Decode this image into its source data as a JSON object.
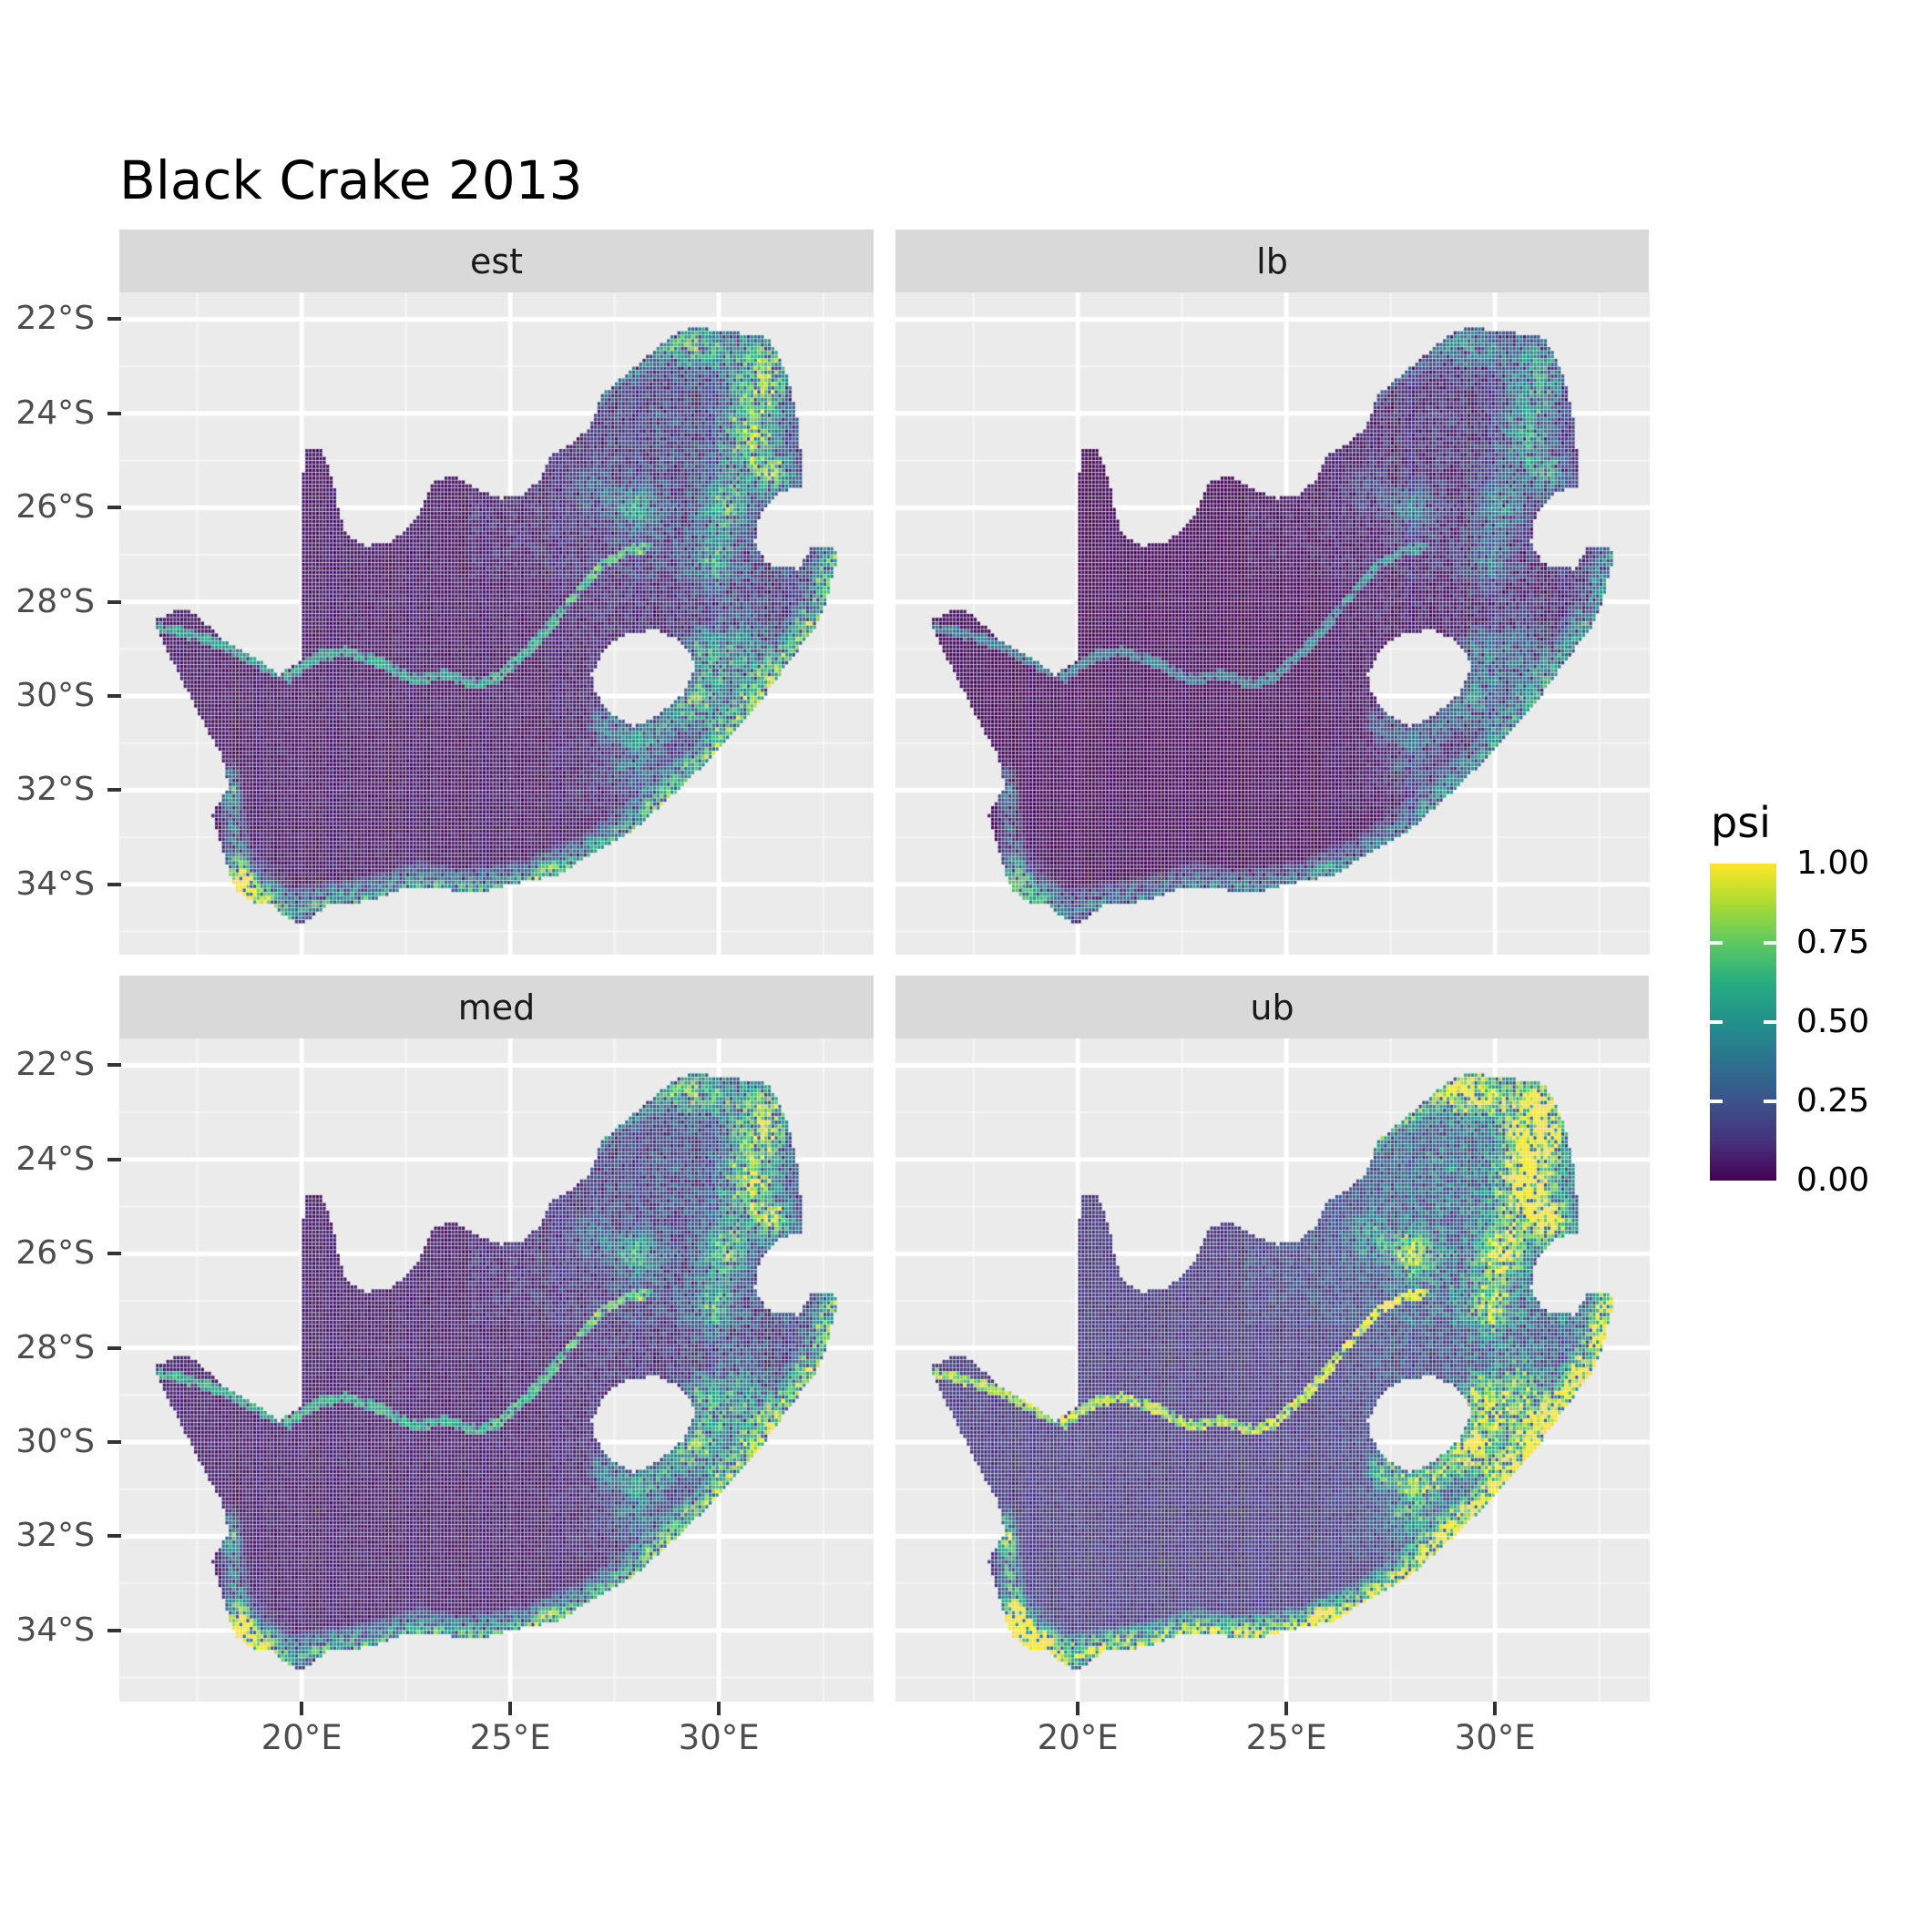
{
  "title": "Black Crake 2013",
  "facets": [
    {
      "key": "est",
      "label": "est"
    },
    {
      "key": "lb",
      "label": "lb"
    },
    {
      "key": "med",
      "label": "med"
    },
    {
      "key": "ub",
      "label": "ub"
    }
  ],
  "axes": {
    "x": {
      "ticks": [
        {
          "label": "20°E",
          "lon": 20
        },
        {
          "label": "25°E",
          "lon": 25
        },
        {
          "label": "30°E",
          "lon": 30
        }
      ]
    },
    "y": {
      "ticks": [
        {
          "label": "22°S",
          "lat": -22
        },
        {
          "label": "24°S",
          "lat": -24
        },
        {
          "label": "26°S",
          "lat": -26
        },
        {
          "label": "28°S",
          "lat": -28
        },
        {
          "label": "30°S",
          "lat": -30
        },
        {
          "label": "32°S",
          "lat": -32
        },
        {
          "label": "34°S",
          "lat": -34
        }
      ]
    }
  },
  "legend": {
    "title": "psi",
    "entries": [
      {
        "label": "1.00",
        "value": 1.0
      },
      {
        "label": "0.75",
        "value": 0.75
      },
      {
        "label": "0.50",
        "value": 0.5
      },
      {
        "label": "0.25",
        "value": 0.25
      },
      {
        "label": "0.00",
        "value": 0.0
      }
    ]
  },
  "style": {
    "panel_bg": "#EBEBEB",
    "strip_bg": "#D9D9D9",
    "grid_major": "#FFFFFF",
    "grid_minor": "rgba(255,255,255,0.55)",
    "axis_text": "#4D4D4D",
    "tick_color": "#333333",
    "title_color": "#000000",
    "viridis": [
      "#440154",
      "#46327E",
      "#3B528B",
      "#2C728E",
      "#21918C",
      "#27AD81",
      "#5EC962",
      "#AADC32",
      "#FDE725"
    ]
  },
  "chart_data": {
    "type": "heatmap",
    "subtype": "faceted-raster-occupancy-map",
    "region": "South Africa",
    "variable": "psi",
    "value_range": [
      0,
      1
    ],
    "facet_order": [
      "est",
      "lb",
      "med",
      "ub"
    ],
    "facet_transforms": {
      "est": {
        "mul": 1.0,
        "add": 0.0
      },
      "lb": {
        "mul": 0.74,
        "add": -0.02
      },
      "med": {
        "mul": 1.06,
        "add": 0.015
      },
      "ub": {
        "mul": 1.45,
        "add": 0.07
      }
    },
    "extent": {
      "lon_min": 15.63,
      "lon_max": 33.71,
      "lat_top": -21.43,
      "lat_bottom": -35.5
    },
    "cell_deg": 0.083333,
    "x_breaks": [
      20,
      25,
      30
    ],
    "x_minor_breaks": [
      17.5,
      22.5,
      27.5,
      32.5
    ],
    "y_breaks": [
      -22,
      -24,
      -26,
      -28,
      -30,
      -32,
      -34
    ],
    "y_minor_breaks": [
      -23,
      -25,
      -27,
      -29,
      -31,
      -33,
      -35
    ],
    "legend_position": "right",
    "outline": [
      [
        16.45,
        -28.4
      ],
      [
        16.95,
        -28.2
      ],
      [
        17.35,
        -28.2
      ],
      [
        17.75,
        -28.5
      ],
      [
        18.25,
        -28.9
      ],
      [
        18.85,
        -29.15
      ],
      [
        19.45,
        -29.55
      ],
      [
        19.98,
        -29.25
      ],
      [
        19.99,
        -28.0
      ],
      [
        20.0,
        -26.5
      ],
      [
        20.02,
        -25.4
      ],
      [
        20.1,
        -24.78
      ],
      [
        20.45,
        -24.75
      ],
      [
        20.65,
        -25.1
      ],
      [
        20.8,
        -25.6
      ],
      [
        20.9,
        -26.1
      ],
      [
        21.05,
        -26.55
      ],
      [
        21.55,
        -26.8
      ],
      [
        22.15,
        -26.75
      ],
      [
        22.6,
        -26.35
      ],
      [
        22.9,
        -26.0
      ],
      [
        23.15,
        -25.45
      ],
      [
        23.65,
        -25.3
      ],
      [
        24.15,
        -25.6
      ],
      [
        24.75,
        -25.8
      ],
      [
        25.35,
        -25.7
      ],
      [
        25.7,
        -25.4
      ],
      [
        25.95,
        -24.9
      ],
      [
        26.45,
        -24.65
      ],
      [
        26.9,
        -24.3
      ],
      [
        27.2,
        -23.6
      ],
      [
        27.75,
        -23.2
      ],
      [
        28.25,
        -22.8
      ],
      [
        28.95,
        -22.3
      ],
      [
        29.45,
        -22.15
      ],
      [
        29.95,
        -22.25
      ],
      [
        30.6,
        -22.3
      ],
      [
        31.2,
        -22.4
      ],
      [
        31.6,
        -23.1
      ],
      [
        31.85,
        -23.9
      ],
      [
        31.95,
        -24.6
      ],
      [
        32.0,
        -25.55
      ],
      [
        31.4,
        -25.7
      ],
      [
        31.0,
        -26.1
      ],
      [
        30.85,
        -26.75
      ],
      [
        31.15,
        -27.2
      ],
      [
        31.9,
        -27.3
      ],
      [
        32.2,
        -26.85
      ],
      [
        32.88,
        -26.88
      ],
      [
        32.6,
        -27.95
      ],
      [
        32.3,
        -28.55
      ],
      [
        31.7,
        -29.25
      ],
      [
        30.85,
        -30.3
      ],
      [
        29.95,
        -31.2
      ],
      [
        28.95,
        -32.05
      ],
      [
        27.95,
        -32.85
      ],
      [
        27.05,
        -33.3
      ],
      [
        26.15,
        -33.8
      ],
      [
        25.65,
        -33.9
      ],
      [
        25.0,
        -34.0
      ],
      [
        24.2,
        -34.2
      ],
      [
        23.4,
        -34.1
      ],
      [
        22.55,
        -34.05
      ],
      [
        21.7,
        -34.35
      ],
      [
        20.6,
        -34.45
      ],
      [
        20.0,
        -34.85
      ],
      [
        19.5,
        -34.65
      ],
      [
        19.3,
        -34.45
      ],
      [
        18.85,
        -34.4
      ],
      [
        18.45,
        -34.15
      ],
      [
        18.3,
        -33.85
      ],
      [
        18.05,
        -33.15
      ],
      [
        17.85,
        -32.55
      ],
      [
        18.25,
        -31.9
      ],
      [
        18.1,
        -31.3
      ],
      [
        17.6,
        -30.5
      ],
      [
        17.1,
        -29.6
      ],
      [
        16.75,
        -29.0
      ]
    ],
    "hole_lesotho": [
      [
        26.95,
        -29.55
      ],
      [
        27.3,
        -28.95
      ],
      [
        27.9,
        -28.65
      ],
      [
        28.55,
        -28.6
      ],
      [
        29.1,
        -28.85
      ],
      [
        29.45,
        -29.35
      ],
      [
        29.15,
        -29.95
      ],
      [
        28.55,
        -30.4
      ],
      [
        27.95,
        -30.65
      ],
      [
        27.45,
        -30.4
      ],
      [
        27.05,
        -29.95
      ]
    ],
    "base": {
      "floor": 0.025,
      "noise": 0.055,
      "dropout_p": 0.13,
      "dropout_mul": 0.3
    },
    "features": {
      "blobs": [
        {
          "lon": 31.0,
          "lat": -23.3,
          "sx": 0.75,
          "sy": 0.9,
          "amp": 0.75
        },
        {
          "lon": 30.7,
          "lat": -24.6,
          "sx": 0.6,
          "sy": 0.7,
          "amp": 0.6
        },
        {
          "lon": 31.3,
          "lat": -25.3,
          "sx": 0.45,
          "sy": 0.5,
          "amp": 0.65
        },
        {
          "lon": 29.5,
          "lat": -22.6,
          "sx": 0.8,
          "sy": 0.45,
          "amp": 0.5
        },
        {
          "lon": 30.2,
          "lat": -25.9,
          "sx": 0.5,
          "sy": 0.6,
          "amp": 0.55
        },
        {
          "lon": 29.9,
          "lat": -27.1,
          "sx": 0.5,
          "sy": 0.6,
          "amp": 0.45
        },
        {
          "lon": 28.0,
          "lat": -26.0,
          "sx": 0.6,
          "sy": 0.5,
          "amp": 0.45
        },
        {
          "lon": 27.0,
          "lat": -25.6,
          "sx": 0.5,
          "sy": 0.4,
          "amp": 0.25
        },
        {
          "lon": 30.5,
          "lat": -29.2,
          "sx": 0.7,
          "sy": 0.8,
          "amp": 0.5
        },
        {
          "lon": 29.7,
          "lat": -30.3,
          "sx": 0.5,
          "sy": 0.5,
          "amp": 0.4
        },
        {
          "lon": 28.0,
          "lat": -31.5,
          "sx": 0.6,
          "sy": 0.5,
          "amp": 0.35
        },
        {
          "lon": 18.55,
          "lat": -33.9,
          "sx": 0.35,
          "sy": 0.45,
          "amp": 0.95
        },
        {
          "lon": 19.0,
          "lat": -34.2,
          "sx": 0.5,
          "sy": 0.35,
          "amp": 0.5
        },
        {
          "lon": 18.33,
          "lat": -32.05,
          "sx": 0.15,
          "sy": 0.2,
          "amp": 0.6
        }
      ],
      "bands": [
        {
          "name": "kzn-east-coast",
          "w": 0.6,
          "amp": 0.7,
          "path": [
            [
              32.88,
              -26.9
            ],
            [
              32.45,
              -28.2
            ],
            [
              31.7,
              -29.2
            ],
            [
              30.8,
              -30.3
            ],
            [
              29.9,
              -31.2
            ],
            [
              28.9,
              -32.1
            ],
            [
              27.9,
              -32.9
            ],
            [
              26.9,
              -33.5
            ],
            [
              26.0,
              -33.8
            ]
          ]
        },
        {
          "name": "south-coast",
          "w": 0.5,
          "amp": 0.65,
          "path": [
            [
              25.8,
              -33.9
            ],
            [
              24.8,
              -34.05
            ],
            [
              23.8,
              -34.15
            ],
            [
              22.8,
              -34.0
            ],
            [
              21.7,
              -34.3
            ],
            [
              20.6,
              -34.4
            ],
            [
              19.7,
              -34.6
            ],
            [
              18.9,
              -34.3
            ],
            [
              18.45,
              -34.1
            ]
          ]
        },
        {
          "name": "west-coast",
          "w": 0.35,
          "amp": 0.4,
          "path": [
            [
              18.2,
              -31.7
            ],
            [
              18.35,
              -32.4
            ],
            [
              18.4,
              -33.0
            ],
            [
              18.45,
              -33.6
            ]
          ]
        },
        {
          "name": "drakensberg-rim",
          "w": 0.45,
          "amp": 0.45,
          "path": [
            [
              27.3,
              -30.6
            ],
            [
              28.2,
              -30.9
            ],
            [
              29.1,
              -30.4
            ],
            [
              29.7,
              -29.6
            ],
            [
              29.55,
              -28.9
            ]
          ]
        },
        {
          "name": "limpopo-border",
          "w": 0.3,
          "amp": 0.3,
          "path": [
            [
              27.2,
              -23.6
            ],
            [
              28.2,
              -22.9
            ],
            [
              29.2,
              -22.4
            ]
          ]
        }
      ],
      "rivers": [
        {
          "name": "orange-river",
          "w": 0.11,
          "amp": 0.5,
          "path": [
            [
              16.6,
              -28.55
            ],
            [
              17.4,
              -28.7
            ],
            [
              18.2,
              -28.95
            ],
            [
              19.0,
              -29.35
            ],
            [
              19.7,
              -29.6
            ],
            [
              20.4,
              -29.15
            ],
            [
              21.1,
              -29.05
            ],
            [
              21.9,
              -29.3
            ],
            [
              22.7,
              -29.65
            ],
            [
              23.5,
              -29.55
            ],
            [
              24.2,
              -29.75
            ],
            [
              24.7,
              -29.6
            ]
          ]
        },
        {
          "name": "vaal-river",
          "w": 0.1,
          "amp": 0.55,
          "path": [
            [
              24.7,
              -29.6
            ],
            [
              25.4,
              -29.05
            ],
            [
              26.0,
              -28.45
            ],
            [
              26.6,
              -27.8
            ],
            [
              27.2,
              -27.2
            ],
            [
              27.8,
              -26.9
            ],
            [
              28.3,
              -26.85
            ]
          ]
        }
      ],
      "east_speckle": {
        "lon_start": 25.5,
        "lat_limit": -32.5,
        "amp": 0.25
      },
      "north_speckle": {
        "lon_start": 24.0,
        "lat_limit": -27.5,
        "amp": 0.12
      }
    }
  }
}
